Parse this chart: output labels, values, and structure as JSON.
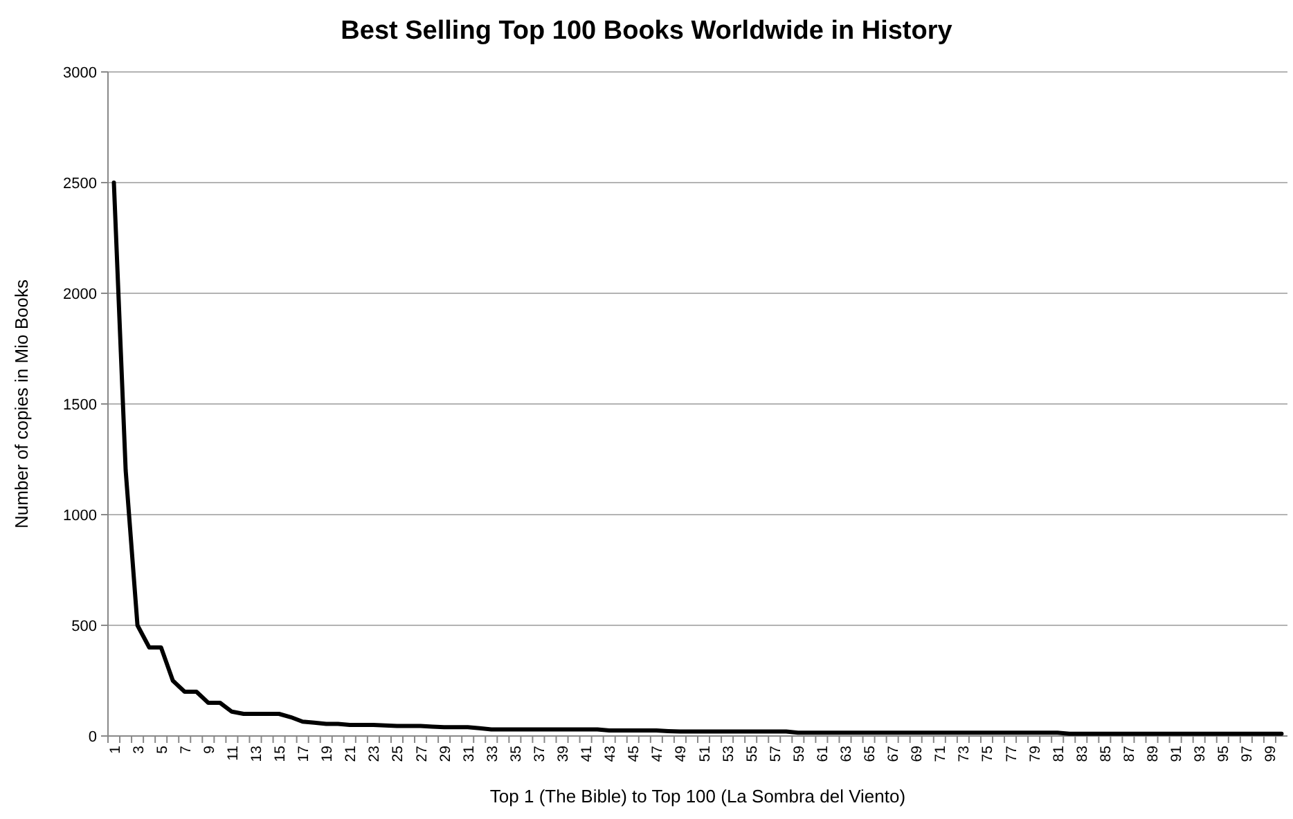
{
  "chart_data": {
    "type": "line",
    "title": "Best Selling Top 100 Books Worldwide in History",
    "xlabel": "Top 1 (The Bible) to Top 100 (La Sombra del Viento)",
    "ylabel": "Number of copies in Mio Books",
    "categories": [
      "1",
      null,
      "3",
      null,
      "5",
      null,
      "7",
      null,
      "9",
      null,
      "11",
      null,
      "13",
      null,
      "15",
      null,
      "17",
      null,
      "19",
      null,
      "21",
      null,
      "23",
      null,
      "25",
      null,
      "27",
      null,
      "29",
      null,
      "31",
      null,
      "33",
      null,
      "35",
      null,
      "37",
      null,
      "39",
      null,
      "41",
      null,
      "43",
      null,
      "45",
      null,
      "47",
      null,
      "49",
      null,
      "51",
      null,
      "53",
      null,
      "55",
      null,
      "57",
      null,
      "59",
      null,
      "61",
      null,
      "63",
      null,
      "65",
      null,
      "67",
      null,
      "69",
      null,
      "71",
      null,
      "73",
      null,
      "75",
      null,
      "77",
      null,
      "79",
      null,
      "81",
      null,
      "83",
      null,
      "85",
      null,
      "87",
      null,
      "89",
      null,
      "91",
      null,
      "93",
      null,
      "95",
      null,
      "97",
      null,
      "99",
      null
    ],
    "series": [
      {
        "color": "#000000",
        "values": [
          2500,
          1200,
          500,
          400,
          400,
          250,
          200,
          200,
          150,
          150,
          110,
          100,
          100,
          100,
          100,
          85,
          65,
          60,
          55,
          55,
          50,
          50,
          50,
          48,
          45,
          45,
          45,
          42,
          40,
          40,
          40,
          35,
          30,
          30,
          30,
          30,
          30,
          30,
          30,
          30,
          30,
          30,
          25,
          25,
          25,
          25,
          25,
          22,
          20,
          20,
          20,
          20,
          20,
          20,
          20,
          20,
          20,
          20,
          15,
          15,
          15,
          15,
          15,
          15,
          15,
          15,
          15,
          15,
          15,
          15,
          15,
          15,
          15,
          15,
          15,
          15,
          15,
          15,
          15,
          15,
          15,
          10,
          10,
          10,
          10,
          10,
          10,
          10,
          10,
          10,
          10,
          10,
          10,
          10,
          10,
          10,
          10,
          10,
          10,
          10
        ]
      }
    ],
    "ylim": [
      0,
      3000
    ],
    "yticks": [
      0,
      500,
      1000,
      1500,
      2000,
      2500,
      3000
    ],
    "grid": "y",
    "marker": "none",
    "line_style": "solid"
  }
}
